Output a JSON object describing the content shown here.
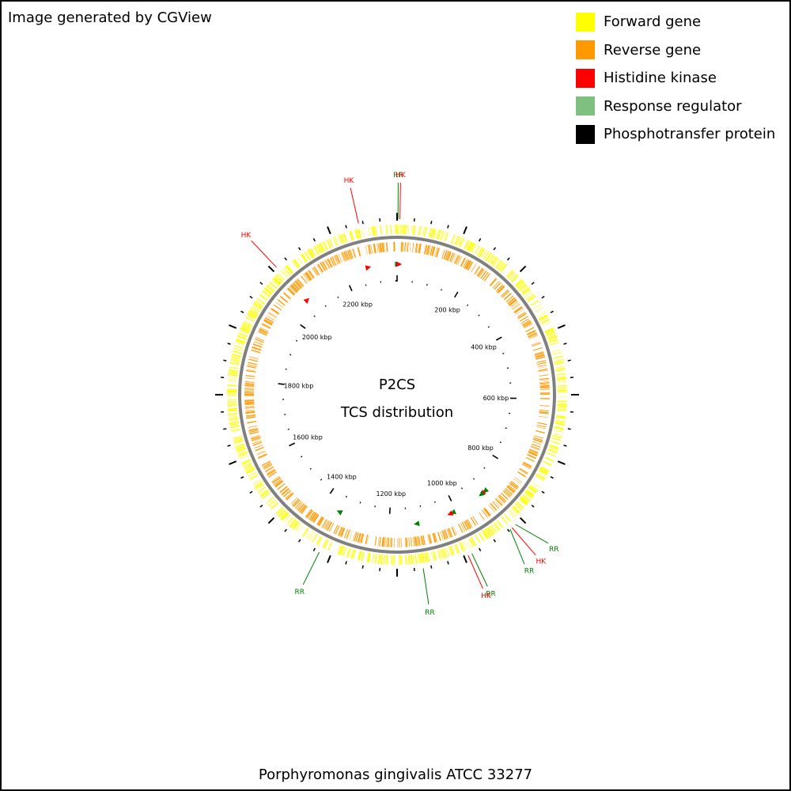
{
  "credit": "Image generated by CGView",
  "legend": [
    {
      "label": "Forward gene",
      "color": "#ffff00"
    },
    {
      "label": "Reverse gene",
      "color": "#ff9900"
    },
    {
      "label": "Histidine kinase",
      "color": "#ff0000"
    },
    {
      "label": "Response regulator",
      "color": "#7fbf7f"
    },
    {
      "label": "Phosphotransfer protein",
      "color": "#000000"
    }
  ],
  "center_title": "P2CS",
  "center_subtitle": "TCS distribution",
  "organism": "Porphyromonas gingivalis ATCC 33277",
  "ruler": {
    "genome_kbp": 2354,
    "labels": [
      "200 kbp",
      "400 kbp",
      "600 kbp",
      "800 kbp",
      "1000 kbp",
      "1200 kbp",
      "1400 kbp",
      "1600 kbp",
      "1800 kbp",
      "2000 kbp",
      "2200 kbp"
    ],
    "label_kbp": [
      200,
      400,
      600,
      800,
      1000,
      1200,
      1400,
      1600,
      1800,
      2000,
      2200
    ]
  },
  "features": [
    {
      "type": "RR",
      "label": "RR",
      "kbp": 2
    },
    {
      "type": "HK",
      "label": "HK",
      "kbp": 6
    },
    {
      "type": "HK",
      "label": "HK",
      "kbp": 2271
    },
    {
      "type": "HK",
      "label": "HK",
      "kbp": 2070
    },
    {
      "type": "RR",
      "label": "RR",
      "kbp": 900
    },
    {
      "type": "HK",
      "label": "HK",
      "kbp": 910
    },
    {
      "type": "RR",
      "label": "RR",
      "kbp": 915
    },
    {
      "type": "RR",
      "label": "RR",
      "kbp": 1012
    },
    {
      "type": "HK",
      "label": "HK",
      "kbp": 1021
    },
    {
      "type": "RR",
      "label": "RR",
      "kbp": 1121
    },
    {
      "type": "RR",
      "label": "RR",
      "kbp": 1349
    }
  ],
  "colors": {
    "HK": "#ff0000",
    "RR": "#008000",
    "backbone": "#808080"
  }
}
